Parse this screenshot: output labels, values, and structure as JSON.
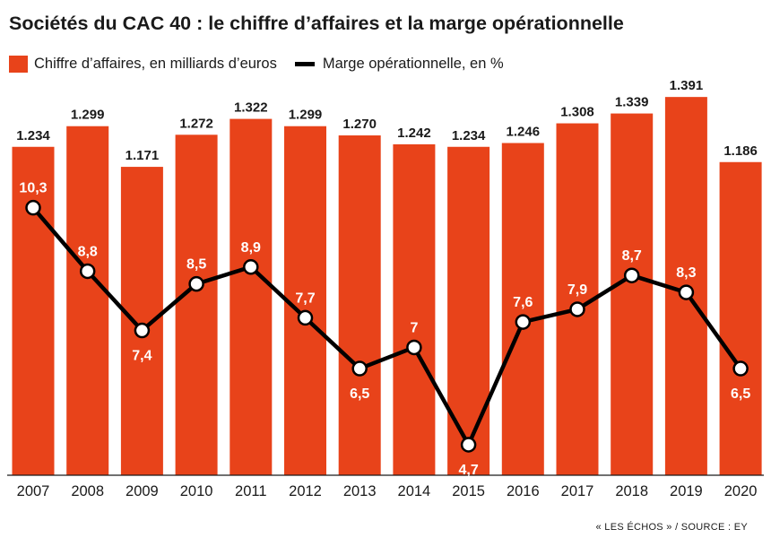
{
  "chart_data": {
    "type": "bar",
    "title": "Sociétés du CAC 40 : le chiffre d’affaires et la marge opérationnelle",
    "categories": [
      "2007",
      "2008",
      "2009",
      "2010",
      "2011",
      "2012",
      "2013",
      "2014",
      "2015",
      "2016",
      "2017",
      "2018",
      "2019",
      "2020"
    ],
    "series": [
      {
        "name": "Chiffre d’affaires, en milliards d’euros",
        "type": "bar",
        "values": [
          1234,
          1299,
          1171,
          1272,
          1322,
          1299,
          1270,
          1242,
          1234,
          1246,
          1308,
          1339,
          1391,
          1186
        ],
        "labels": [
          "1.234",
          "1.299",
          "1.171",
          "1.272",
          "1.322",
          "1.299",
          "1.270",
          "1.242",
          "1.234",
          "1.246",
          "1.308",
          "1.339",
          "1.391",
          "1.186"
        ],
        "color": "#e8431a"
      },
      {
        "name": "Marge opérationnelle, en %",
        "type": "line",
        "values": [
          10.3,
          8.8,
          7.4,
          8.5,
          8.9,
          7.7,
          6.5,
          7.0,
          4.7,
          7.6,
          7.9,
          8.7,
          8.3,
          6.5
        ],
        "labels": [
          "10,3",
          "8,8",
          "7,4",
          "8,5",
          "8,9",
          "7,7",
          "6,5",
          "7",
          "4,7",
          "7,6",
          "7,9",
          "8,7",
          "8,3",
          "6,5"
        ],
        "label_position": [
          "above",
          "above",
          "below",
          "above",
          "above",
          "above",
          "below",
          "above",
          "below",
          "above",
          "above",
          "above",
          "above",
          "below"
        ],
        "color": "#000000"
      }
    ],
    "grid": false,
    "legend": "top-left"
  },
  "source": "« LES ÉCHOS » / SOURCE : EY"
}
